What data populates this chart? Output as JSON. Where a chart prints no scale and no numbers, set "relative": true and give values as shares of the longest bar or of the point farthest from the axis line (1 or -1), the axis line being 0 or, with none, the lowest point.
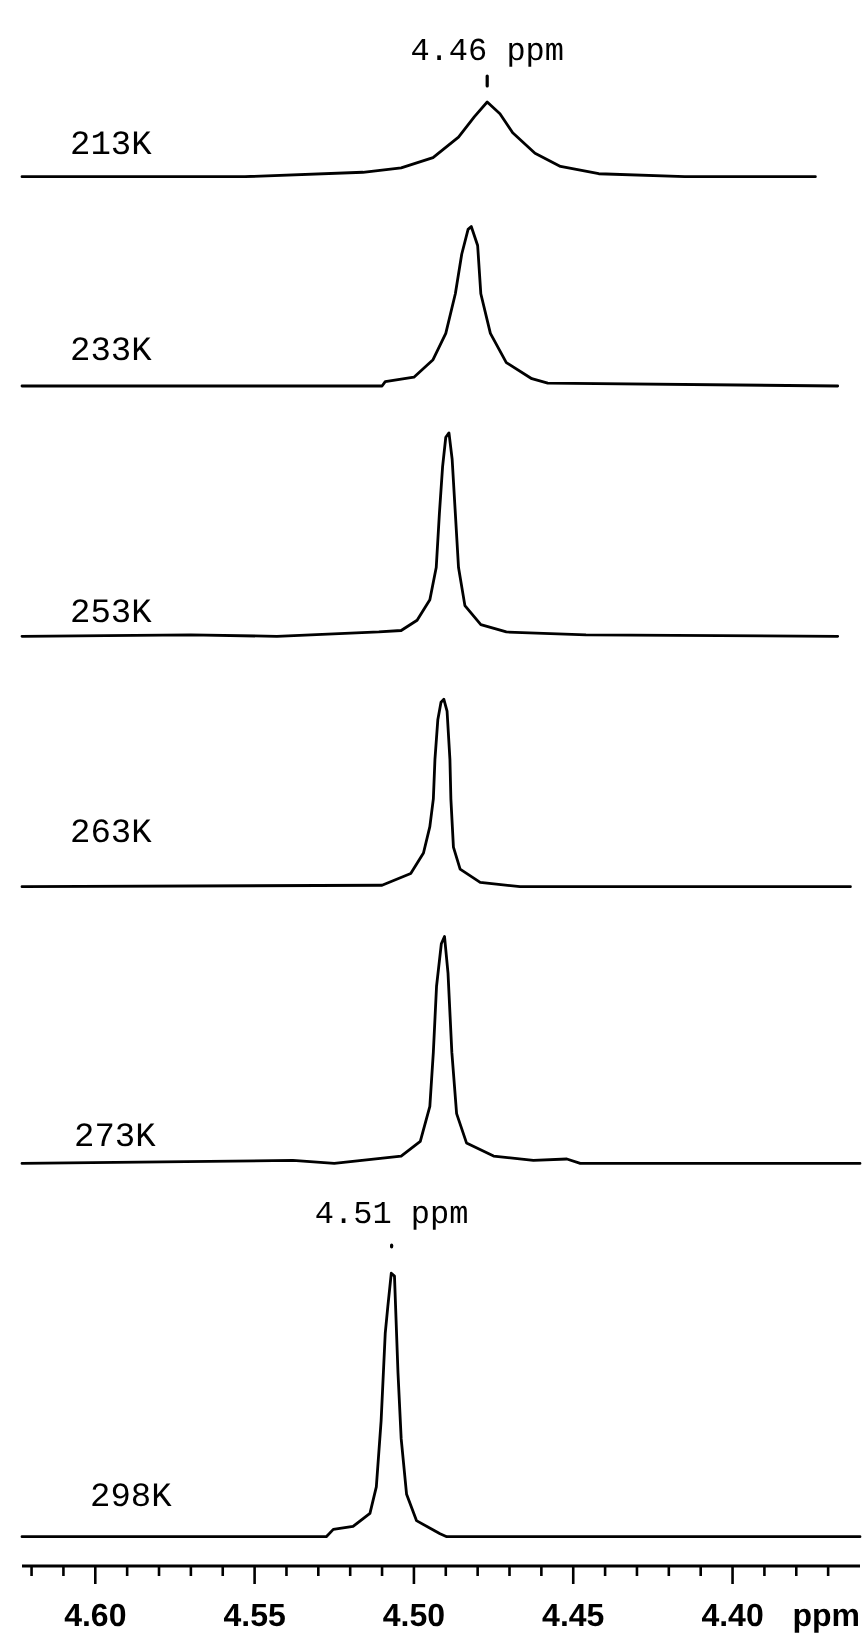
{
  "chart_data": {
    "type": "line",
    "relative": true,
    "xlim": [
      4.623,
      4.36
    ],
    "xlabel": "ppm",
    "xticks": [
      {
        "value": 4.62,
        "label": null
      },
      {
        "value": 4.61,
        "label": null
      },
      {
        "value": 4.6,
        "label": "4.60"
      },
      {
        "value": 4.59,
        "label": null
      },
      {
        "value": 4.58,
        "label": null
      },
      {
        "value": 4.57,
        "label": null
      },
      {
        "value": 4.56,
        "label": null
      },
      4.55,
      {
        "value": 4.54,
        "label": null
      },
      {
        "value": 4.53,
        "label": null
      },
      {
        "value": 4.52,
        "label": null
      },
      {
        "value": 4.51,
        "label": null
      },
      {
        "value": 4.5,
        "label": "4.50"
      },
      {
        "value": 4.49,
        "label": null
      },
      {
        "value": 4.48,
        "label": null
      },
      {
        "value": 4.47,
        "label": null
      },
      {
        "value": 4.46,
        "label": null
      },
      4.45,
      {
        "value": 4.44,
        "label": null
      },
      {
        "value": 4.43,
        "label": null
      },
      {
        "value": 4.42,
        "label": null
      },
      {
        "value": 4.41,
        "label": null
      },
      {
        "value": 4.4,
        "label": "4.40"
      },
      {
        "value": 4.39,
        "label": null
      },
      {
        "value": 4.38,
        "label": null
      },
      {
        "value": 4.37,
        "label": null
      }
    ],
    "annotations": [
      {
        "text": "4.46 ppm",
        "x": 4.477,
        "y": 1
      },
      {
        "text": "4.51 ppm",
        "x": 4.507,
        "y": 0.2
      }
    ],
    "series": [
      {
        "name": "213K",
        "color": "#000000",
        "x": [
          4.623,
          4.553,
          4.516,
          4.504,
          4.494,
          4.486,
          4.481,
          4.477,
          4.473,
          4.469,
          4.462,
          4.454,
          4.442,
          4.415,
          4.374
        ],
        "values": [
          0.949,
          0.949,
          0.952,
          0.955,
          0.962,
          0.976,
          0.99,
          1,
          0.992,
          0.979,
          0.965,
          0.956,
          0.951,
          0.949,
          0.949
        ]
      },
      {
        "name": "233K",
        "color": "#000000",
        "x": [
          4.623,
          4.51,
          4.509,
          4.5,
          4.494,
          4.49,
          4.487,
          4.485,
          4.483,
          4.482,
          4.48,
          4.479,
          4.476,
          4.471,
          4.463,
          4.458,
          4.367
        ],
        "values": [
          0.806,
          0.806,
          0.809,
          0.812,
          0.824,
          0.842,
          0.869,
          0.896,
          0.913,
          0.915,
          0.902,
          0.869,
          0.842,
          0.822,
          0.811,
          0.808,
          0.806
        ]
      },
      {
        "name": "253K",
        "color": "#000000",
        "x": [
          4.623,
          4.57,
          4.543,
          4.511,
          4.504,
          4.499,
          4.495,
          4.493,
          4.492,
          4.491,
          4.49,
          4.489,
          4.488,
          4.487,
          4.486,
          4.484,
          4.479,
          4.471,
          4.446,
          4.367
        ],
        "values": [
          0.635,
          0.636,
          0.635,
          0.638,
          0.639,
          0.646,
          0.66,
          0.682,
          0.719,
          0.751,
          0.771,
          0.774,
          0.756,
          0.719,
          0.682,
          0.656,
          0.643,
          0.638,
          0.636,
          0.635
        ]
      },
      {
        "name": "263K",
        "color": "#000000",
        "x": [
          4.623,
          4.51,
          4.501,
          4.497,
          4.495,
          4.4939,
          4.4934,
          4.4925,
          4.4915,
          4.4906,
          4.4896,
          4.4887,
          4.4884,
          4.4876,
          4.4855,
          4.4792,
          4.4667,
          4.363
        ],
        "values": [
          0.464,
          0.465,
          0.473,
          0.487,
          0.505,
          0.524,
          0.551,
          0.578,
          0.59,
          0.592,
          0.584,
          0.551,
          0.524,
          0.491,
          0.476,
          0.467,
          0.464,
          0.464
        ]
      },
      {
        "name": "273K",
        "color": "#000000",
        "x": [
          4.623,
          4.538,
          4.525,
          4.504,
          4.498,
          4.495,
          4.4939,
          4.4929,
          4.4914,
          4.4904,
          4.4893,
          4.4881,
          4.4866,
          4.4835,
          4.475,
          4.4625,
          4.452,
          4.4478,
          4.36
        ],
        "values": [
          0.275,
          0.277,
          0.275,
          0.28,
          0.29,
          0.314,
          0.351,
          0.396,
          0.425,
          0.43,
          0.405,
          0.351,
          0.309,
          0.289,
          0.28,
          0.277,
          0.278,
          0.275,
          0.275
        ]
      },
      {
        "name": "298K",
        "color": "#000000",
        "x": [
          4.623,
          4.5275,
          4.5253,
          4.5191,
          4.5138,
          4.5118,
          4.5103,
          4.509,
          4.5082,
          4.5071,
          4.5061,
          4.505,
          4.504,
          4.5023,
          4.4992,
          4.4918,
          4.4897,
          4.36
        ],
        "values": [
          0.02,
          0.02,
          0.025,
          0.027,
          0.036,
          0.054,
          0.099,
          0.159,
          0.177,
          0.2,
          0.198,
          0.132,
          0.087,
          0.049,
          0.031,
          0.022,
          0.02,
          0.02
        ]
      }
    ]
  }
}
